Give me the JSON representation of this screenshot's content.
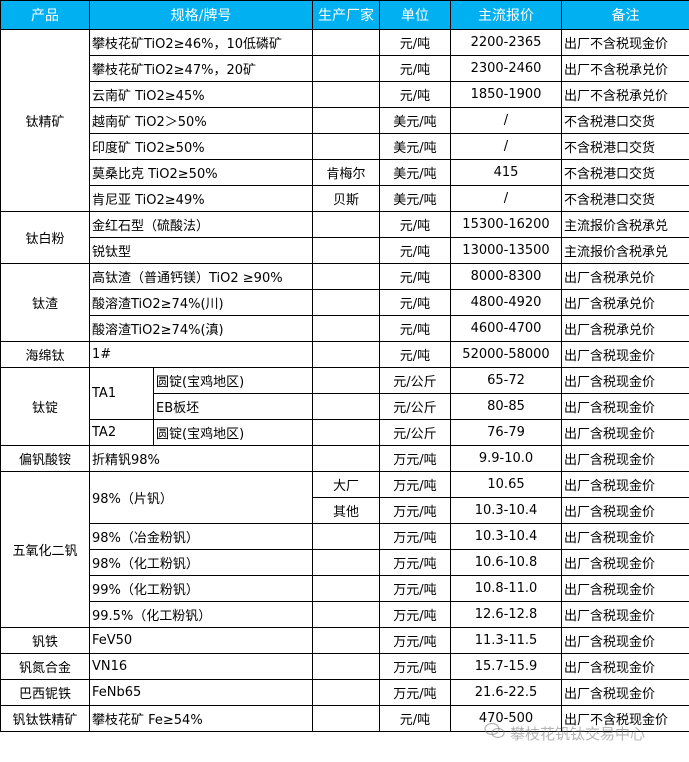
{
  "header": {
    "product": "产品",
    "spec": "规格/牌号",
    "maker": "生产厂家",
    "unit": "单位",
    "price": "主流报价",
    "note": "备注"
  },
  "header_color": "#00b0f0",
  "groups": [
    {
      "product": "钛精矿",
      "rows": [
        {
          "spec": "攀枝花矿TiO2≥46%，10低磷矿",
          "maker": "",
          "unit": "元/吨",
          "price": "2200-2365",
          "note": "出厂不含税现金价"
        },
        {
          "spec": "攀枝花矿TiO2≥47%，20矿",
          "maker": "",
          "unit": "元/吨",
          "price": "2300-2460",
          "note": "出厂不含税承兑价"
        },
        {
          "spec": "云南矿 TiO2≥45%",
          "maker": "",
          "unit": "元/吨",
          "price": "1850-1900",
          "note": "出厂不含税承兑价"
        },
        {
          "spec": "越南矿 TiO2＞50%",
          "maker": "",
          "unit": "美元/吨",
          "price": "/",
          "note": "不含税港口交货"
        },
        {
          "spec": "印度矿 TiO2≥50%",
          "maker": "",
          "unit": "美元/吨",
          "price": "/",
          "note": "不含税港口交货"
        },
        {
          "spec": "莫桑比克 TiO2≥50%",
          "maker": "肯梅尔",
          "unit": "美元/吨",
          "price": "415",
          "note": "不含税港口交货"
        },
        {
          "spec": "肯尼亚 TiO2≥49%",
          "maker": "贝斯",
          "unit": "美元/吨",
          "price": "/",
          "note": "不含税港口交货"
        }
      ]
    },
    {
      "product": "钛白粉",
      "rows": [
        {
          "spec": "金红石型（硫酸法）",
          "maker": "",
          "unit": "元/吨",
          "price": "15300-16200",
          "note": "主流报价含税承兑"
        },
        {
          "spec": "锐钛型",
          "maker": "",
          "unit": "元/吨",
          "price": "13000-13500",
          "note": "主流报价含税承兑"
        }
      ]
    },
    {
      "product": "钛渣",
      "rows": [
        {
          "spec": "高钛渣（普通钙镁）TiO2 ≥90%",
          "maker": "",
          "unit": "元/吨",
          "price": "8000-8300",
          "note": "出厂含税承兑价"
        },
        {
          "spec": "酸溶渣TiO2≥74%(川)",
          "maker": "",
          "unit": "元/吨",
          "price": "4800-4920",
          "note": "出厂含税承兑价"
        },
        {
          "spec": "酸溶渣TiO2≥74%(滇)",
          "maker": "",
          "unit": "元/吨",
          "price": "4600-4700",
          "note": "出厂含税承兑价"
        }
      ]
    },
    {
      "product": "海绵钛",
      "rows": [
        {
          "spec": "1#",
          "maker": "",
          "unit": "元/吨",
          "price": "52000-58000",
          "note": "出厂含税现金价"
        }
      ]
    },
    {
      "product": "钛锭",
      "rows": [
        {
          "spec": "TA1",
          "sub": "圆锭(宝鸡地区)",
          "maker": "",
          "unit": "元/公斤",
          "price": "65-72",
          "note": "出厂含税现金价"
        },
        {
          "sub": "EB板坯",
          "maker": "",
          "unit": "元/公斤",
          "price": "80-85",
          "note": "出厂含税现金价"
        },
        {
          "spec": "TA2",
          "sub": "圆锭(宝鸡地区)",
          "maker": "",
          "unit": "元/公斤",
          "price": "76-79",
          "note": "出厂含税现金价"
        }
      ]
    },
    {
      "product": "偏钒酸铵",
      "rows": [
        {
          "spec": "折精钒98%",
          "maker": "",
          "unit": "万元/吨",
          "price": "9.9-10.0",
          "note": "出厂含税现金价"
        }
      ]
    },
    {
      "product": "五氧化二钒",
      "rows": [
        {
          "spec": "98%（片钒）",
          "maker": "大厂",
          "unit": "万元/吨",
          "price": "10.65",
          "note": "出厂含税现金价"
        },
        {
          "maker": "其他",
          "unit": "万元/吨",
          "price": "10.3-10.4",
          "note": "出厂含税现金价"
        },
        {
          "spec": "98%（冶金粉钒）",
          "maker": "",
          "unit": "万元/吨",
          "price": "10.3-10.4",
          "note": "出厂含税现金价"
        },
        {
          "spec": "98%（化工粉钒）",
          "maker": "",
          "unit": "万元/吨",
          "price": "10.6-10.8",
          "note": "出厂含税现金价"
        },
        {
          "spec": "99%（化工粉钒）",
          "maker": "",
          "unit": "万元/吨",
          "price": "10.8-11.0",
          "note": "出厂含税现金价"
        },
        {
          "spec": "99.5%（化工粉钒）",
          "maker": "",
          "unit": "万元/吨",
          "price": "12.6-12.8",
          "note": "出厂含税现金价"
        }
      ]
    },
    {
      "product": "钒铁",
      "rows": [
        {
          "spec": "FeV50",
          "maker": "",
          "unit": "万元/吨",
          "price": "11.3-11.5",
          "note": "出厂含税现金价"
        }
      ]
    },
    {
      "product": "钒氮合金",
      "rows": [
        {
          "spec": "VN16",
          "maker": "",
          "unit": "万元/吨",
          "price": "15.7-15.9",
          "note": "出厂含税现金价"
        }
      ]
    },
    {
      "product": "巴西铌铁",
      "rows": [
        {
          "spec": "FeNb65",
          "maker": "",
          "unit": "万元/吨",
          "price": "21.6-22.5",
          "note": "出厂含税现金价"
        }
      ]
    },
    {
      "product": "钒钛铁精矿",
      "rows": [
        {
          "spec": "攀枝花矿 Fe≥54%",
          "maker": "",
          "unit": "元/吨",
          "price": "470-500",
          "note": "出厂不含税现金价"
        }
      ]
    }
  ],
  "watermark": {
    "icon": "wechat-icon",
    "text": "攀枝花钒钛交易中心"
  }
}
